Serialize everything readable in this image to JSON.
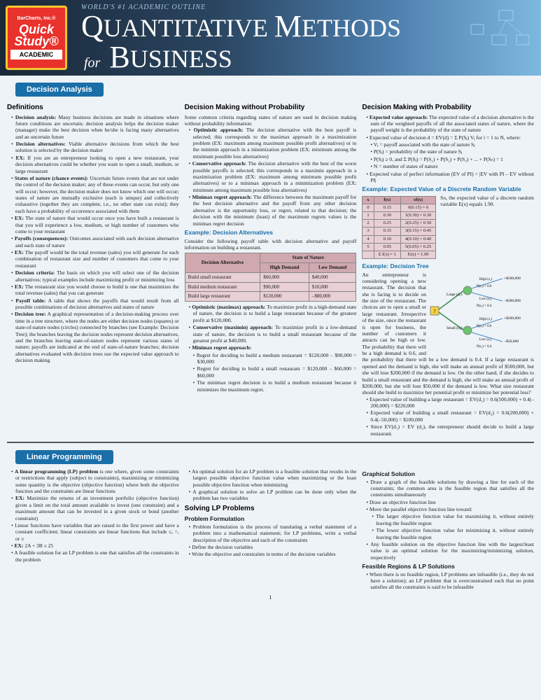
{
  "header": {
    "brand": "BarCharts, Inc.®",
    "badge_main": "Quick Study®",
    "badge_sub": "ACADEMIC",
    "tagline": "WORLD'S #1 ACADEMIC OUTLINE",
    "title_q": "Q",
    "title_uantitative": "UANTITATIVE ",
    "title_m": "M",
    "title_ethods": "ETHODS",
    "title_for": "for",
    "title_b": "B",
    "title_usiness": "USINESS"
  },
  "section1": {
    "title": "Decision Analysis",
    "col1_h": "Definitions",
    "defs": [
      {
        "t": "Decision analysis:",
        "b": " Many business decisions are made in situations where future conditions are uncertain; decision analysis helps the decision maker (manager) make the best decision when he/she is facing many alternatives and an uncertain future"
      },
      {
        "t": "Decision alternatives:",
        "b": " Viable alternative decisions from which the best solution is selected by the decision maker"
      },
      {
        "ex": "EX:",
        "b": " If you are an entrepreneur looking to open a new restaurant, your decision alternatives could be whether you want to open a small, medium, or large restaurant"
      },
      {
        "t": "States of nature (chance events):",
        "b": " Uncertain future events that are not under the control of the decision maker; any of these events can occur, but only one will occur; however, the decision maker does not know which one will occur; states of nature are mutually exclusive (each is unique) and collectively exhaustive (together they are complete, i.e., no other state can exist); they each have a probability of occurrence associated with them"
      },
      {
        "ex": "EX:",
        "b": " The state of nature that would occur once you have built a restaurant is that you will experience a low, medium, or high number of customers who come to your restaurant"
      },
      {
        "t": "Payoffs (consequences):",
        "b": " Outcomes associated with each decision alternative and each state of nature"
      },
      {
        "ex": "EX:",
        "b": " The payoff would be the total revenue (sales) you will generate for each combination of restaurant size and number of customers that come to your restaurant"
      },
      {
        "t": "Decision criteria:",
        "b": " The basis on which you will select one of the decision alternatives; typical examples include maximizing profit or minimizing loss"
      },
      {
        "ex": "EX:",
        "b": " The restaurant size you would choose to build is one that maximizes the total revenue (sales) that you can generate"
      },
      {
        "t": "Payoff table:",
        "b": " A table that shows the payoffs that would result from all possible combinations of decision alternatives and states of nature"
      },
      {
        "t": "Decision tree:",
        "b": " A graphical representation of a decision-making process over time in a tree structure, where the nodes are either decision nodes (squares) or state-of-nature nodes (circles) connected by branches (see Example: Decision Tree); the branches leaving the decision nodes represent decision alternatives, and the branches leaving state-of-nature nodes represent various states of nature; payoffs are indicated at the end of state-of-nature branches; decision alternatives evaluated with decision trees use the expected value approach to decision making"
      }
    ],
    "col2_h": "Decision Making without Probability",
    "col2_intro": "Some common criteria regarding states of nature are used in decision making without probability information:",
    "approaches": [
      {
        "t": "Optimistic approach:",
        "b": " The decision alternative with the best payoff is selected; this corresponds to the maximax approach in a maximization problem (EX: maximum among maximum possible profit alternatives) or to the minimin approach in a minimization problem (EX: minimum among the minimum possible loss alternatives)"
      },
      {
        "t": "Conservative approach:",
        "b": " The decision alternative with the best of the worst possible payoffs is selected; this corresponds to a maximin approach in a maximization problem (EX: maximum among minimum possible profit alternatives) or to a minimax approach in a minimization problem (EX: minimum among maximum possible loss alternatives)"
      },
      {
        "t": "Minimax regret approach:",
        "b": " The difference between the maximum payoff for the best decision alternative and the payoff from any other decision alternative is the opportunity loss, or regret, related to that decision; the decision with the minimum (least) of the maximum regrets values is the minimax regret decision"
      }
    ],
    "example_da": "Example: Decision Alternatives",
    "example_da_text": "Consider the following payoff table with decision alternative and payoff information on building a restaurant.",
    "payoff_table": {
      "h1": "Decision Alternative",
      "h2": "State of Nature",
      "h3": "High Demand",
      "h4": "Low Demand",
      "rows": [
        [
          "Build small restaurant",
          "$60,000",
          "$40,000"
        ],
        [
          "Build medium restaurant",
          "$90,000",
          "$10,000"
        ],
        [
          "Build large restaurant",
          "$120,000",
          "–$80,000"
        ]
      ]
    },
    "approaches2": [
      {
        "t": "Optimistic (maximax) approach:",
        "b": " To maximize profit in a high-demand state of nature, the decision is to build a large restaurant because of the greatest profit at $120,000."
      },
      {
        "t": "Conservative (maximin) approach:",
        "b": " To maximize profit in a low-demand state of nature, the decision is to build a small restaurant because of the greatest profit at $40,000."
      },
      {
        "t": "Minimax regret approach:",
        "b": ""
      }
    ],
    "regrets": [
      "Regret for deciding to build a medium restaurant = $120,000 – $90,000 = $30,000",
      "Regret for deciding to build a small restaurant = $120,000 – $60,000 = $60,000",
      "The minimax regret decision is to build a medium restaurant because it minimizes the maximum regret."
    ],
    "col3_h": "Decision Making with Probability",
    "ev_approach": {
      "t": "Expected value approach:",
      "b": " The expected value of a decision alternative is the sum of the weighted payoffs of all the associated states of nature, where the payoff weight is the probability of the state of nature"
    },
    "ev_formula": "Expected value of decision d = EV(d) = Σ P(Sⱼ) Vⱼ for i = 1 to N, where:",
    "ev_where": [
      "Vⱼ = payoff associated with the state of nature Sⱼ",
      "P(Sⱼ) = probability of the state of nature Sⱼ",
      "P(Sⱼ) ≥ 0, and Σ P(Sⱼ) = P(S₁) + P(S₂) + P(S₃) + ... + P(Sₙ) = 1",
      "N = number of states of nature"
    ],
    "ev_perfect": "Expected value of perfect information (EV of PI) = |EV with PI – EV without PI|",
    "example_ev_h": "Example: Expected Value of a Discrete Random Variable",
    "ev_table": {
      "headers": [
        "x",
        "f(x)",
        "xf(x)"
      ],
      "rows": [
        [
          "0",
          "0.15",
          "0(0.15) = 0"
        ],
        [
          "1",
          "0.30",
          "1(0.30) = 0.30"
        ],
        [
          "2",
          "0.25",
          "2(0.25) = 0.50"
        ],
        [
          "3",
          "0.15",
          "3(0.15) = 0.45"
        ],
        [
          "4",
          "0.10",
          "4(0.10) = 0.40"
        ],
        [
          "5",
          "0.05",
          "5(0.05) = 0.25"
        ],
        [
          "",
          "Σ f(x) = 1",
          "E(x) = 1.90"
        ]
      ]
    },
    "ev_side": "So, the expected value of a discrete random variable E(x) equals 1.90.",
    "example_tree_h": "Example: Decision Tree",
    "tree_text": "An entrepreneur is considering opening a new restaurant. The decision that she is facing is to decide on the size of the restaurant. The choices are to open a small or large restaurant. Irrespective of the size, once the restaurant is open for business, the number of customers it attracts can be high or low. The probability that there will be a high demand is 0.6, and the probability that there will be a low demand is 0.4. If a large restaurant is opened and the demand is high, she will make an annual profit of $500,000, but she will lose $200,000 if the demand is low. On the other hand, if she decides to build a small restaurant and the demand is high, she will make an annual profit of $200,000, but she will lose $50,000 if the demand is low. What size restaurant should she build to maximize her potential profit or minimize her potential loss?",
    "tree_calcs": [
      "Expected value of building a large restaurant = EV(d₁) = 0.6(500,000) + 0.4(–200,000) = $220,000",
      "Expected value of building a small restaurant = EV(d₂) = 0.6(200,000) + 0.4(–50,000) = $100,000",
      "Since EV(d₁) > EV (d₂), the entrepreneur should decide to build a large restaurant."
    ],
    "tree": {
      "large_label": "Large (d₁)",
      "small_label": "Small (d₂)",
      "high_label": "High (s₁)",
      "low_label": "Low (s₂)",
      "p_high": "P(s₁) = 0.6",
      "p_low": "P(s₂) = 0.4",
      "v1": "+$500,000",
      "v2": "−$200,000",
      "v3": "+$200,000",
      "v4": "−$50,000"
    }
  },
  "section2": {
    "title": "Linear Programming",
    "col1": [
      {
        "t": "A linear programming (LP) problem",
        "b": " is one where, given some constraints or restrictions that apply (subject to constraints), maximizing or minimizing some quantity is the objective (objective function) where both the objective function and the constraints are linear functions"
      },
      {
        "ex": "EX:",
        "b": " Maximize the returns of an investment portfolio (objective function) given a limit on the total amount available to invest (one constraint) and a maximum amount that can be invested in a given stock or bond (another constraint)"
      },
      {
        "b": "Linear functions have variables that are raised to the first power and have a constant coefficient; linear constraints are linear functions that include ≤, =, or ≥"
      },
      {
        "ex": "EX:",
        "b": " 2A + 3B ≤ 25"
      },
      {
        "b": "A feasible solution for an LP problem is one that satisfies all the constraints in the problem"
      }
    ],
    "col2_top": [
      "An optimal solution for an LP problem is a feasible solution that results in the largest possible objective function value when maximizing or the least possible objective function when minimizing",
      "A graphical solution to solve an LP problem can be done only when the problem has two variables"
    ],
    "col2_h": "Solving LP Problems",
    "col2_sub": "Problem Formulation",
    "col2_items": [
      "Problem formulation is the process of translating a verbal statement of a problem into a mathematical statement; for LP problems, write a verbal description of the objective and each of the constraints",
      "Define the decision variables",
      "Write the objective and constraints in terms of the decision variables"
    ],
    "col3_h": "Graphical Solution",
    "col3_items": [
      "Draw a graph of the feasible solutions by drawing a line for each of the constraints; the common area is the feasible region that satisfies all the constraints simultaneously",
      "Draw an objective function line",
      "Move the parallel objective function line toward:"
    ],
    "col3_sub": [
      "The larger objective function value for maximizing it, without entirely leaving the feasible region",
      "The lower objective function value for minimizing it, without entirely leaving the feasible region"
    ],
    "col3_last": "Any feasible solution on the objective function line with the largest/least value is an optimal solution for the maximizing/minimizing solution, respectively",
    "col3_h2": "Feasible Regions & LP Solutions",
    "col3_items2": [
      "When there is no feasible region, LP problems are infeasible (i.e., they do not have a solution); an LP problem that is overconstrained such that no point satisfies all the constraints is said to be infeasible"
    ]
  },
  "page_num": "1"
}
